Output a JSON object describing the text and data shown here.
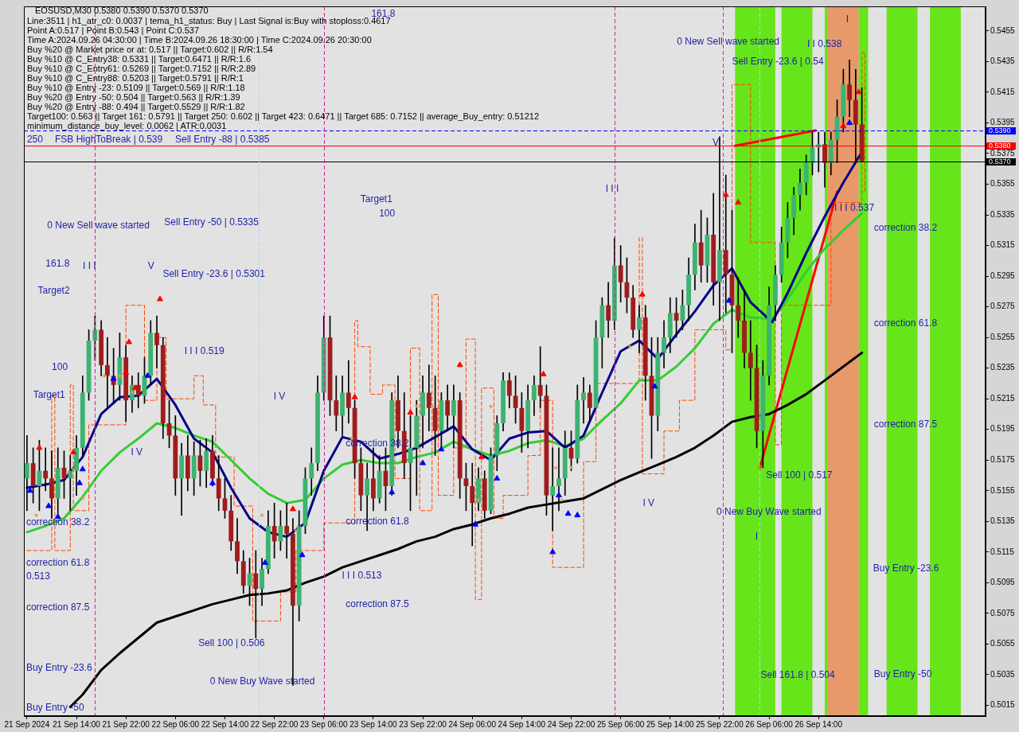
{
  "chart_data": {
    "type": "candlestick",
    "title": "EOSUSD,M30 0.5380 0.5390 0.5370 0.5370",
    "x": [
      "2024-09-21T06:00",
      "2024-09-21T07:00",
      "2024-09-21T08:00",
      "2024-09-21T09:00",
      "2024-09-21T10:00",
      "2024-09-21T11:00",
      "2024-09-21T12:00",
      "2024-09-21T13:00",
      "2024-09-21T14:00",
      "2024-09-21T15:00",
      "2024-09-21T16:00",
      "2024-09-21T17:00",
      "2024-09-21T18:00",
      "2024-09-21T19:00",
      "2024-09-21T20:00",
      "2024-09-21T21:00",
      "2024-09-21T22:00",
      "2024-09-21T23:00",
      "2024-09-22T00:00",
      "2024-09-22T01:00",
      "2024-09-22T02:00",
      "2024-09-22T03:00",
      "2024-09-22T04:00",
      "2024-09-22T05:00",
      "2024-09-22T06:00",
      "2024-09-22T07:00",
      "2024-09-22T08:00",
      "2024-09-22T09:00",
      "2024-09-22T10:00",
      "2024-09-22T11:00",
      "2024-09-22T12:00",
      "2024-09-22T13:00",
      "2024-09-22T14:00",
      "2024-09-22T15:00",
      "2024-09-22T16:00",
      "2024-09-22T17:00",
      "2024-09-22T18:00",
      "2024-09-22T19:00",
      "2024-09-22T20:00",
      "2024-09-22T21:00",
      "2024-09-22T22:00",
      "2024-09-22T23:00",
      "2024-09-23T00:00",
      "2024-09-23T01:00",
      "2024-09-23T02:00",
      "2024-09-23T03:00",
      "2024-09-23T04:00",
      "2024-09-23T05:00",
      "2024-09-23T06:00",
      "2024-09-23T07:00",
      "2024-09-23T08:00",
      "2024-09-23T09:00",
      "2024-09-23T10:00",
      "2024-09-23T11:00",
      "2024-09-23T12:00",
      "2024-09-23T13:00",
      "2024-09-23T14:00",
      "2024-09-23T15:00",
      "2024-09-23T16:00",
      "2024-09-23T17:00",
      "2024-09-23T18:00",
      "2024-09-23T19:00",
      "2024-09-23T20:00",
      "2024-09-23T21:00",
      "2024-09-23T22:00",
      "2024-09-23T23:00",
      "2024-09-24T00:00",
      "2024-09-24T01:00",
      "2024-09-24T02:00",
      "2024-09-24T03:00",
      "2024-09-24T04:00",
      "2024-09-24T05:00",
      "2024-09-24T06:00",
      "2024-09-24T07:00",
      "2024-09-24T08:00",
      "2024-09-24T09:00",
      "2024-09-24T10:00",
      "2024-09-24T11:00",
      "2024-09-24T12:00",
      "2024-09-24T13:00",
      "2024-09-24T14:00",
      "2024-09-24T15:00",
      "2024-09-24T16:00",
      "2024-09-24T17:00",
      "2024-09-24T18:00",
      "2024-09-24T19:00",
      "2024-09-24T20:00",
      "2024-09-24T21:00",
      "2024-09-24T22:00",
      "2024-09-24T23:00",
      "2024-09-25T00:00",
      "2024-09-25T01:00",
      "2024-09-25T02:00",
      "2024-09-25T03:00",
      "2024-09-25T04:00",
      "2024-09-25T05:00",
      "2024-09-25T06:00",
      "2024-09-25T07:00",
      "2024-09-25T08:00",
      "2024-09-25T09:00",
      "2024-09-25T10:00",
      "2024-09-25T11:00",
      "2024-09-25T12:00",
      "2024-09-25T13:00",
      "2024-09-25T14:00",
      "2024-09-25T15:00",
      "2024-09-25T16:00",
      "2024-09-25T17:00",
      "2024-09-25T18:00",
      "2024-09-25T19:00",
      "2024-09-25T20:00",
      "2024-09-25T21:00",
      "2024-09-25T22:00",
      "2024-09-25T23:00",
      "2024-09-26T00:00",
      "2024-09-26T01:00",
      "2024-09-26T02:00",
      "2024-09-26T03:00",
      "2024-09-26T04:00",
      "2024-09-26T05:00",
      "2024-09-26T06:00",
      "2024-09-26T07:00",
      "2024-09-26T08:00",
      "2024-09-26T09:00",
      "2024-09-26T10:00",
      "2024-09-26T11:00",
      "2024-09-26T12:00",
      "2024-09-26T13:00",
      "2024-09-26T14:00",
      "2024-09-26T15:00",
      "2024-09-26T16:00",
      "2024-09-26T17:00",
      "2024-09-26T18:00",
      "2024-09-26T19:00",
      "2024-09-26T20:00",
      "2024-09-26T21:00"
    ],
    "ohlc": [
      [
        0.5163,
        0.5191,
        0.5142,
        0.5173
      ],
      [
        0.5173,
        0.5183,
        0.5147,
        0.5158
      ],
      [
        0.5158,
        0.5188,
        0.5142,
        0.5168
      ],
      [
        0.5168,
        0.5183,
        0.5155,
        0.5163
      ],
      [
        0.5163,
        0.5181,
        0.5137,
        0.515
      ],
      [
        0.515,
        0.5183,
        0.514,
        0.517
      ],
      [
        0.517,
        0.5181,
        0.515,
        0.5163
      ],
      [
        0.5163,
        0.5178,
        0.5142,
        0.5168
      ],
      [
        0.5168,
        0.5191,
        0.5152,
        0.5183
      ],
      [
        0.5183,
        0.523,
        0.5178,
        0.5219
      ],
      [
        0.5219,
        0.526,
        0.5214,
        0.5253
      ],
      [
        0.5253,
        0.5269,
        0.524,
        0.526
      ],
      [
        0.526,
        0.5266,
        0.523,
        0.5237
      ],
      [
        0.5237,
        0.5255,
        0.5209,
        0.523
      ],
      [
        0.523,
        0.5248,
        0.5212,
        0.5224
      ],
      [
        0.5224,
        0.5258,
        0.5214,
        0.5242
      ],
      [
        0.5242,
        0.525,
        0.52,
        0.5214
      ],
      [
        0.5214,
        0.523,
        0.5206,
        0.5224
      ],
      [
        0.5224,
        0.5232,
        0.5209,
        0.5217
      ],
      [
        0.5217,
        0.5242,
        0.5212,
        0.523
      ],
      [
        0.523,
        0.5266,
        0.5224,
        0.5258
      ],
      [
        0.5258,
        0.5269,
        0.5235,
        0.525
      ],
      [
        0.525,
        0.5255,
        0.5189,
        0.5199
      ],
      [
        0.5199,
        0.5214,
        0.5183,
        0.5191
      ],
      [
        0.5191,
        0.5204,
        0.5152,
        0.5163
      ],
      [
        0.5163,
        0.5186,
        0.5139,
        0.5178
      ],
      [
        0.5178,
        0.5191,
        0.5155,
        0.5163
      ],
      [
        0.5163,
        0.5187,
        0.5152,
        0.5178
      ],
      [
        0.5178,
        0.5188,
        0.5158,
        0.5168
      ],
      [
        0.5168,
        0.5189,
        0.5157,
        0.5181
      ],
      [
        0.5181,
        0.5191,
        0.5158,
        0.5163
      ],
      [
        0.5163,
        0.5178,
        0.5142,
        0.515
      ],
      [
        0.515,
        0.5163,
        0.5137,
        0.5142
      ],
      [
        0.5142,
        0.5152,
        0.5116,
        0.5122
      ],
      [
        0.5122,
        0.5137,
        0.5101,
        0.5109
      ],
      [
        0.5109,
        0.5116,
        0.5088,
        0.5093
      ],
      [
        0.5093,
        0.5111,
        0.508,
        0.5101
      ],
      [
        0.5101,
        0.5116,
        0.5059,
        0.5091
      ],
      [
        0.5091,
        0.5111,
        0.508,
        0.5104
      ],
      [
        0.5104,
        0.5142,
        0.5101,
        0.5132
      ],
      [
        0.5132,
        0.5147,
        0.5111,
        0.5122
      ],
      [
        0.5122,
        0.5142,
        0.5116,
        0.5132
      ],
      [
        0.5132,
        0.5147,
        0.5111,
        0.5127
      ],
      [
        0.5127,
        0.5137,
        0.5028,
        0.508
      ],
      [
        0.508,
        0.5142,
        0.507,
        0.5132
      ],
      [
        0.5132,
        0.517,
        0.5127,
        0.5163
      ],
      [
        0.5163,
        0.5183,
        0.5152,
        0.5173
      ],
      [
        0.5173,
        0.523,
        0.5168,
        0.5219
      ],
      [
        0.5219,
        0.5269,
        0.5214,
        0.5255
      ],
      [
        0.5255,
        0.5269,
        0.5204,
        0.5214
      ],
      [
        0.5214,
        0.523,
        0.5194,
        0.5204
      ],
      [
        0.5204,
        0.523,
        0.5191,
        0.5219
      ],
      [
        0.5219,
        0.524,
        0.5199,
        0.5209
      ],
      [
        0.5209,
        0.5214,
        0.5163,
        0.5173
      ],
      [
        0.5173,
        0.5183,
        0.5142,
        0.5152
      ],
      [
        0.5152,
        0.5173,
        0.5129,
        0.5163
      ],
      [
        0.5163,
        0.5183,
        0.5142,
        0.515
      ],
      [
        0.515,
        0.5178,
        0.5147,
        0.5168
      ],
      [
        0.5168,
        0.5183,
        0.5142,
        0.5158
      ],
      [
        0.5158,
        0.5219,
        0.5152,
        0.5214
      ],
      [
        0.5214,
        0.523,
        0.5183,
        0.5194
      ],
      [
        0.5194,
        0.5219,
        0.5163,
        0.5173
      ],
      [
        0.5173,
        0.5204,
        0.5142,
        0.5183
      ],
      [
        0.5183,
        0.5214,
        0.5152,
        0.5204
      ],
      [
        0.5204,
        0.523,
        0.5183,
        0.5219
      ],
      [
        0.5219,
        0.5237,
        0.5194,
        0.5209
      ],
      [
        0.5209,
        0.523,
        0.5178,
        0.5194
      ],
      [
        0.5194,
        0.5219,
        0.5183,
        0.5214
      ],
      [
        0.5214,
        0.5224,
        0.5194,
        0.5204
      ],
      [
        0.5204,
        0.5224,
        0.5183,
        0.5214
      ],
      [
        0.5214,
        0.5219,
        0.515,
        0.5163
      ],
      [
        0.5163,
        0.5173,
        0.5142,
        0.5158
      ],
      [
        0.5158,
        0.5173,
        0.5119,
        0.5147
      ],
      [
        0.5147,
        0.517,
        0.5142,
        0.5163
      ],
      [
        0.5163,
        0.5168,
        0.5137,
        0.5142
      ],
      [
        0.5142,
        0.5183,
        0.514,
        0.5178
      ],
      [
        0.5178,
        0.5204,
        0.5168,
        0.5199
      ],
      [
        0.5199,
        0.5232,
        0.5194,
        0.5227
      ],
      [
        0.5227,
        0.5232,
        0.5209,
        0.5217
      ],
      [
        0.5217,
        0.523,
        0.5199,
        0.5209
      ],
      [
        0.5209,
        0.5219,
        0.518,
        0.5194
      ],
      [
        0.5194,
        0.5224,
        0.5183,
        0.5214
      ],
      [
        0.5214,
        0.523,
        0.5204,
        0.5224
      ],
      [
        0.5224,
        0.5249,
        0.5209,
        0.5217
      ],
      [
        0.5217,
        0.5224,
        0.5139,
        0.5152
      ],
      [
        0.5152,
        0.5183,
        0.5129,
        0.5158
      ],
      [
        0.5158,
        0.5183,
        0.5142,
        0.5163
      ],
      [
        0.5163,
        0.5194,
        0.5152,
        0.5183
      ],
      [
        0.5183,
        0.5194,
        0.5168,
        0.5176
      ],
      [
        0.5176,
        0.5224,
        0.5173,
        0.5214
      ],
      [
        0.5214,
        0.5229,
        0.5199,
        0.5219
      ],
      [
        0.5219,
        0.5224,
        0.5201,
        0.5209
      ],
      [
        0.5209,
        0.5266,
        0.5209,
        0.5255
      ],
      [
        0.5255,
        0.5281,
        0.5235,
        0.5276
      ],
      [
        0.5276,
        0.5291,
        0.5255,
        0.5266
      ],
      [
        0.5266,
        0.532,
        0.526,
        0.5302
      ],
      [
        0.5302,
        0.5315,
        0.5278,
        0.5291
      ],
      [
        0.5291,
        0.5307,
        0.5271,
        0.5281
      ],
      [
        0.5281,
        0.5289,
        0.5255,
        0.526
      ],
      [
        0.526,
        0.5276,
        0.5245,
        0.5268
      ],
      [
        0.5268,
        0.5276,
        0.5214,
        0.523
      ],
      [
        0.523,
        0.5255,
        0.5176,
        0.5204
      ],
      [
        0.5204,
        0.5255,
        0.5194,
        0.5245
      ],
      [
        0.5245,
        0.5266,
        0.5235,
        0.5255
      ],
      [
        0.5255,
        0.5281,
        0.5245,
        0.5271
      ],
      [
        0.5271,
        0.5281,
        0.5255,
        0.5266
      ],
      [
        0.5266,
        0.5286,
        0.526,
        0.5276
      ],
      [
        0.5276,
        0.5307,
        0.5266,
        0.5296
      ],
      [
        0.5296,
        0.5329,
        0.5286,
        0.5317
      ],
      [
        0.5317,
        0.5338,
        0.5291,
        0.5302
      ],
      [
        0.5302,
        0.5333,
        0.5291,
        0.5322
      ],
      [
        0.5322,
        0.5349,
        0.5276,
        0.5291
      ],
      [
        0.5291,
        0.5386,
        0.5266,
        0.5312
      ],
      [
        0.5312,
        0.5361,
        0.5271,
        0.5296
      ],
      [
        0.5296,
        0.5338,
        0.5245,
        0.5276
      ],
      [
        0.5276,
        0.5294,
        0.5255,
        0.5266
      ],
      [
        0.5266,
        0.5286,
        0.5235,
        0.5245
      ],
      [
        0.5245,
        0.5266,
        0.5214,
        0.5235
      ],
      [
        0.5235,
        0.525,
        0.5183,
        0.5194
      ],
      [
        0.5194,
        0.524,
        0.517,
        0.523
      ],
      [
        0.523,
        0.5288,
        0.5224,
        0.5276
      ],
      [
        0.5276,
        0.5302,
        0.5266,
        0.5296
      ],
      [
        0.5296,
        0.5327,
        0.5291,
        0.5317
      ],
      [
        0.5317,
        0.5343,
        0.5307,
        0.5333
      ],
      [
        0.5333,
        0.5353,
        0.5322,
        0.5348
      ],
      [
        0.5348,
        0.5365,
        0.5338,
        0.5356
      ],
      [
        0.5356,
        0.5374,
        0.5348,
        0.5369
      ],
      [
        0.5369,
        0.5389,
        0.5361,
        0.5379
      ],
      [
        0.5379,
        0.5389,
        0.5363,
        0.5381
      ],
      [
        0.5381,
        0.5389,
        0.5353,
        0.5369
      ],
      [
        0.5369,
        0.5389,
        0.5361,
        0.5384
      ],
      [
        0.5384,
        0.541,
        0.5369,
        0.5399
      ],
      [
        0.5399,
        0.543,
        0.5389,
        0.542
      ],
      [
        0.542,
        0.5436,
        0.5399,
        0.541
      ],
      [
        0.541,
        0.543,
        0.5369,
        0.5394
      ],
      [
        0.5394,
        0.5418,
        0.537,
        0.537
      ]
    ],
    "series": [
      {
        "type": "line",
        "color": "#00008b",
        "x": [
          "2024-09-21T06:00",
          "2024-09-21T09:00",
          "2024-09-21T12:00",
          "2024-09-21T15:00",
          "2024-09-21T18:00",
          "2024-09-21T21:00",
          "2024-09-22T00:00",
          "2024-09-22T03:00",
          "2024-09-22T06:00",
          "2024-09-22T09:00",
          "2024-09-22T12:00",
          "2024-09-22T15:00",
          "2024-09-22T18:00",
          "2024-09-22T21:00",
          "2024-09-23T00:00",
          "2024-09-23T03:00",
          "2024-09-23T06:00",
          "2024-09-23T09:00",
          "2024-09-23T12:00",
          "2024-09-23T15:00",
          "2024-09-23T18:00",
          "2024-09-23T21:00",
          "2024-09-24T00:00",
          "2024-09-24T03:00",
          "2024-09-24T06:00",
          "2024-09-24T09:00",
          "2024-09-24T12:00",
          "2024-09-24T15:00",
          "2024-09-24T18:00",
          "2024-09-24T21:00",
          "2024-09-25T00:00",
          "2024-09-25T03:00",
          "2024-09-25T06:00",
          "2024-09-25T09:00",
          "2024-09-25T12:00",
          "2024-09-25T15:00",
          "2024-09-25T18:00",
          "2024-09-25T21:00",
          "2024-09-26T00:00",
          "2024-09-26T03:00",
          "2024-09-26T06:30",
          "2024-09-26T09:00",
          "2024-09-26T12:00",
          "2024-09-26T15:00",
          "2024-09-26T18:00",
          "2024-09-26T21:00"
        ],
        "values": [
          0.5157,
          0.5159,
          0.5162,
          0.5177,
          0.5205,
          0.5216,
          0.5217,
          0.5228,
          0.5211,
          0.5189,
          0.518,
          0.5157,
          0.5137,
          0.5128,
          0.5125,
          0.5134,
          0.5168,
          0.519,
          0.5187,
          0.5176,
          0.5179,
          0.5183,
          0.519,
          0.5197,
          0.5182,
          0.5175,
          0.5189,
          0.5193,
          0.5194,
          0.5183,
          0.5191,
          0.5219,
          0.5246,
          0.5253,
          0.5241,
          0.5257,
          0.5272,
          0.5289,
          0.53,
          0.5278,
          0.5265,
          0.5284,
          0.531,
          0.5334,
          0.5356,
          0.5376
        ]
      },
      {
        "type": "line",
        "color": "#32cd32",
        "x": [
          "2024-09-21T06:00",
          "2024-09-21T09:00",
          "2024-09-21T12:00",
          "2024-09-21T15:00",
          "2024-09-21T18:00",
          "2024-09-21T21:00",
          "2024-09-22T00:00",
          "2024-09-22T03:00",
          "2024-09-22T06:00",
          "2024-09-22T09:00",
          "2024-09-22T12:00",
          "2024-09-22T15:00",
          "2024-09-22T18:00",
          "2024-09-22T21:00",
          "2024-09-23T00:00",
          "2024-09-23T03:00",
          "2024-09-23T06:00",
          "2024-09-23T09:00",
          "2024-09-23T12:00",
          "2024-09-23T15:00",
          "2024-09-23T18:00",
          "2024-09-23T21:00",
          "2024-09-24T00:00",
          "2024-09-24T03:00",
          "2024-09-24T06:00",
          "2024-09-24T09:00",
          "2024-09-24T12:00",
          "2024-09-24T15:00",
          "2024-09-24T18:00",
          "2024-09-24T21:00",
          "2024-09-25T00:00",
          "2024-09-25T03:00",
          "2024-09-25T06:00",
          "2024-09-25T09:00",
          "2024-09-25T12:00",
          "2024-09-25T15:00",
          "2024-09-25T18:00",
          "2024-09-25T21:00",
          "2024-09-26T00:00",
          "2024-09-26T03:00",
          "2024-09-26T06:30",
          "2024-09-26T09:00",
          "2024-09-26T12:00",
          "2024-09-26T15:00",
          "2024-09-26T18:00",
          "2024-09-26T21:00"
        ],
        "values": [
          0.5128,
          0.5132,
          0.5137,
          0.5151,
          0.5168,
          0.518,
          0.5189,
          0.5199,
          0.5196,
          0.5191,
          0.5187,
          0.5175,
          0.5163,
          0.5153,
          0.5147,
          0.5149,
          0.5163,
          0.5172,
          0.5175,
          0.5173,
          0.5173,
          0.5177,
          0.518,
          0.5187,
          0.5182,
          0.5178,
          0.5181,
          0.5186,
          0.5188,
          0.5184,
          0.5189,
          0.5201,
          0.5212,
          0.5227,
          0.5227,
          0.5236,
          0.5248,
          0.5264,
          0.5273,
          0.5268,
          0.5267,
          0.528,
          0.5298,
          0.5313,
          0.5325,
          0.5336
        ]
      },
      {
        "type": "line",
        "color": "#000000",
        "x": [
          "2024-09-21T13:00",
          "2024-09-21T15:00",
          "2024-09-21T18:00",
          "2024-09-21T21:00",
          "2024-09-22T00:00",
          "2024-09-22T03:00",
          "2024-09-22T06:00",
          "2024-09-22T09:00",
          "2024-09-22T12:00",
          "2024-09-22T15:00",
          "2024-09-22T18:00",
          "2024-09-22T21:00",
          "2024-09-23T00:00",
          "2024-09-23T03:00",
          "2024-09-23T06:00",
          "2024-09-23T09:00",
          "2024-09-23T12:00",
          "2024-09-23T15:00",
          "2024-09-23T18:00",
          "2024-09-23T21:00",
          "2024-09-24T00:00",
          "2024-09-24T03:00",
          "2024-09-24T06:00",
          "2024-09-24T09:00",
          "2024-09-24T12:00",
          "2024-09-24T15:00",
          "2024-09-24T18:00",
          "2024-09-24T21:00",
          "2024-09-25T00:00",
          "2024-09-25T03:00",
          "2024-09-25T06:00",
          "2024-09-25T09:00",
          "2024-09-25T12:00",
          "2024-09-25T15:00",
          "2024-09-25T18:00",
          "2024-09-25T21:00",
          "2024-09-26T00:00",
          "2024-09-26T03:00",
          "2024-09-26T06:00",
          "2024-09-26T09:00",
          "2024-09-26T12:00",
          "2024-09-26T15:00",
          "2024-09-26T18:00",
          "2024-09-26T21:00"
        ],
        "values": [
          0.5014,
          0.5022,
          0.5038,
          0.5049,
          0.5059,
          0.5069,
          0.5073,
          0.5077,
          0.5081,
          0.5084,
          0.5087,
          0.5088,
          0.509,
          0.5095,
          0.5099,
          0.5105,
          0.5109,
          0.5113,
          0.5117,
          0.5122,
          0.5125,
          0.513,
          0.5133,
          0.5137,
          0.514,
          0.5144,
          0.5146,
          0.5148,
          0.515,
          0.5156,
          0.5162,
          0.5167,
          0.5172,
          0.5177,
          0.5183,
          0.5191,
          0.52,
          0.5203,
          0.5205,
          0.5211,
          0.5218,
          0.5227,
          0.5236,
          0.5245
        ]
      },
      {
        "type": "step",
        "color": "#ff4500",
        "line_style": "dashed",
        "x": [
          "2024-09-21T06:00",
          "2024-09-21T10:00",
          "2024-09-21T10:30",
          "2024-09-21T13:00",
          "2024-09-21T13:30",
          "2024-09-21T16:00",
          "2024-09-21T22:00",
          "2024-09-22T01:00",
          "2024-09-22T03:00",
          "2024-09-22T04:30",
          "2024-09-22T09:00",
          "2024-09-22T10:30",
          "2024-09-22T12:30",
          "2024-09-22T15:30",
          "2024-09-22T18:30",
          "2024-09-22T23:00",
          "2024-09-23T01:30",
          "2024-09-23T06:00",
          "2024-09-23T11:00",
          "2024-09-23T11:30",
          "2024-09-23T13:30",
          "2024-09-23T15:30",
          "2024-09-23T17:30",
          "2024-09-23T20:00",
          "2024-09-23T21:30",
          "2024-09-23T23:30",
          "2024-09-24T00:30",
          "2024-09-24T03:00",
          "2024-09-24T05:00",
          "2024-09-24T06:30",
          "2024-09-24T07:30",
          "2024-09-24T09:30",
          "2024-09-24T11:00",
          "2024-09-24T15:00",
          "2024-09-24T17:00",
          "2024-09-24T19:00",
          "2024-09-25T00:00",
          "2024-09-25T02:00",
          "2024-09-25T09:00",
          "2024-09-25T09:30",
          "2024-09-25T13:00",
          "2024-09-25T15:30",
          "2024-09-25T18:00",
          "2024-09-25T23:00",
          "2024-09-26T00:00",
          "2024-09-26T03:00",
          "2024-09-26T07:00",
          "2024-09-26T08:00",
          "2024-09-26T16:00",
          "2024-09-26T21:00",
          "2024-09-26T21:30"
        ],
        "values": [
          0.5116,
          0.5217,
          0.5116,
          0.5224,
          0.5142,
          0.5198,
          0.5276,
          0.5214,
          0.5255,
          0.5215,
          0.523,
          0.5211,
          0.5177,
          0.5145,
          0.507,
          0.5089,
          0.5116,
          0.5134,
          0.5266,
          0.5249,
          0.5218,
          0.5224,
          0.5163,
          0.5248,
          0.5142,
          0.5283,
          0.5152,
          0.5183,
          0.5254,
          0.5084,
          0.5222,
          0.5137,
          0.5152,
          0.5178,
          0.5214,
          0.5105,
          0.5174,
          0.5225,
          0.532,
          0.5166,
          0.5194,
          0.5214,
          0.526,
          0.5247,
          0.542,
          0.5317,
          0.5185,
          0.5276,
          0.5343,
          0.5441,
          0.535
        ]
      },
      {
        "type": "line",
        "color": "#ff0000",
        "x": [
          "2024-09-26T00:30",
          "2024-09-26T13:30"
        ],
        "values": [
          0.538,
          0.539
        ]
      },
      {
        "type": "line",
        "color": "#ff0000",
        "x": [
          "2024-09-26T04:30",
          "2024-09-26T17:00"
        ],
        "values": [
          0.517,
          0.535
        ]
      },
      {
        "type": "scatter",
        "color": "#ff0000",
        "marker": "triangle",
        "x": [
          "2024-09-21T08:00",
          "2024-09-21T13:30",
          "2024-09-21T22:00",
          "2024-09-21T22:30",
          "2024-09-21T23:30",
          "2024-09-22T03:30",
          "2024-09-23T01:00",
          "2024-09-23T11:00",
          "2024-09-23T20:00",
          "2024-09-24T04:00",
          "2024-09-24T07:30",
          "2024-09-24T17:30",
          "2024-09-25T09:30",
          "2024-09-25T23:00",
          "2024-09-26T01:00",
          "2024-09-26T18:00",
          "2024-09-26T20:30"
        ],
        "values": [
          0.5183,
          0.518,
          0.5232,
          0.5252,
          0.5222,
          0.528,
          0.5143,
          0.5216,
          0.5206,
          0.5237,
          0.5177,
          0.5231,
          0.5283,
          0.5348,
          0.5343,
          0.5393,
          0.5415
        ]
      },
      {
        "type": "scatter",
        "color": "#0000ff",
        "marker": "triangle",
        "x": [
          "2024-09-21T06:30",
          "2024-09-21T09:30",
          "2024-09-21T11:00",
          "2024-09-21T14:30",
          "2024-09-21T15:00",
          "2024-09-21T20:00",
          "2024-09-22T01:30",
          "2024-09-22T12:00",
          "2024-09-22T20:30",
          "2024-09-23T02:30",
          "2024-09-23T17:00",
          "2024-09-23T22:00",
          "2024-09-24T01:00",
          "2024-09-24T06:30",
          "2024-09-24T10:00",
          "2024-09-24T19:00",
          "2024-09-24T20:00",
          "2024-09-24T21:30",
          "2024-09-24T23:00",
          "2024-09-25T11:30",
          "2024-09-25T23:30",
          "2024-09-26T19:00"
        ],
        "values": [
          0.5155,
          0.5145,
          0.5138,
          0.516,
          0.5169,
          0.5228,
          0.523,
          0.516,
          0.5108,
          0.5113,
          0.5154,
          0.5173,
          0.5182,
          0.5133,
          0.5163,
          0.5115,
          0.5152,
          0.514,
          0.5139,
          0.5223,
          0.5279,
          0.5395
        ]
      },
      {
        "type": "scatter",
        "color": "#e09a50",
        "marker": "star",
        "x": [
          "2024-09-21T07:30",
          "2024-09-21T13:30",
          "2024-09-21T15:00",
          "2024-09-21T18:30",
          "2024-09-21T21:00",
          "2024-09-21T23:00",
          "2024-09-22T20:00",
          "2024-09-23T01:30",
          "2024-09-23T10:30",
          "2024-09-23T21:00",
          "2024-09-23T23:30",
          "2024-09-24T07:00",
          "2024-09-24T09:00",
          "2024-09-24T19:30",
          "2024-09-24T20:30",
          "2024-09-24T22:00",
          "2024-09-25T07:30"
        ],
        "values": [
          0.5139,
          0.5169,
          0.515,
          0.523,
          0.523,
          0.5219,
          0.5139,
          0.5129,
          0.5189,
          0.521,
          0.521,
          0.5149,
          0.521,
          0.517,
          0.5149,
          0.517,
          0.5249
        ]
      }
    ],
    "xlim": [
      "2024-09-21T05:30",
      "2024-09-27T17:00"
    ],
    "ylim": [
      0.5008,
      0.5471
    ],
    "xticks": [
      {
        "value": "2024-09-21T06:00",
        "label": "21 Sep 2024"
      },
      {
        "value": "2024-09-21T14:00",
        "label": "21 Sep 14:00"
      },
      {
        "value": "2024-09-21T22:00",
        "label": "21 Sep 22:00"
      },
      {
        "value": "2024-09-22T06:00",
        "label": "22 Sep 06:00"
      },
      {
        "value": "2024-09-22T14:00",
        "label": "22 Sep 14:00"
      },
      {
        "value": "2024-09-22T22:00",
        "label": "22 Sep 22:00"
      },
      {
        "value": "2024-09-23T06:00",
        "label": "23 Sep 06:00"
      },
      {
        "value": "2024-09-23T14:00",
        "label": "23 Sep 14:00"
      },
      {
        "value": "2024-09-23T22:00",
        "label": "23 Sep 22:00"
      },
      {
        "value": "2024-09-24T06:00",
        "label": "24 Sep 06:00"
      },
      {
        "value": "2024-09-24T14:00",
        "label": "24 Sep 14:00"
      },
      {
        "value": "2024-09-24T22:00",
        "label": "24 Sep 22:00"
      },
      {
        "value": "2024-09-25T06:00",
        "label": "25 Sep 06:00"
      },
      {
        "value": "2024-09-25T14:00",
        "label": "25 Sep 14:00"
      },
      {
        "value": "2024-09-25T22:00",
        "label": "25 Sep 22:00"
      },
      {
        "value": "2024-09-26T06:00",
        "label": "26 Sep 06:00"
      },
      {
        "value": "2024-09-26T14:00",
        "label": "26 Sep 14:00"
      }
    ],
    "yticks": [
      0.5455,
      0.5435,
      0.5415,
      0.5395,
      0.5375,
      0.5355,
      0.5335,
      0.5315,
      0.5295,
      0.5275,
      0.5255,
      0.5235,
      0.5215,
      0.5195,
      0.5175,
      0.5155,
      0.5135,
      0.5115,
      0.5095,
      0.5075,
      0.5055,
      0.5035,
      0.5015
    ],
    "bands": [
      {
        "axis": "x",
        "from": "2024-09-26T00:30",
        "to": "2024-09-26T07:00",
        "color": "#66e61a"
      },
      {
        "axis": "x",
        "from": "2024-09-26T08:00",
        "to": "2024-09-26T13:00",
        "color": "#66e61a"
      },
      {
        "axis": "x",
        "from": "2024-09-26T15:00",
        "to": "2024-09-26T15:30",
        "color": "#66e61a"
      },
      {
        "axis": "x",
        "from": "2024-09-26T15:30",
        "to": "2024-09-26T20:30",
        "color": "#e8996a"
      },
      {
        "axis": "x",
        "from": "2024-09-26T20:30",
        "to": "2024-09-26T22:00",
        "color": "#66e61a"
      },
      {
        "axis": "x",
        "from": "2024-09-27T01:00",
        "to": "2024-09-27T06:00",
        "color": "#66e61a"
      },
      {
        "axis": "x",
        "from": "2024-09-27T08:00",
        "to": "2024-09-27T13:00",
        "color": "#66e61a"
      }
    ],
    "ref_lines": [
      {
        "axis": "y",
        "value": 0.539,
        "label": "0.5390",
        "color": "#0000ff",
        "line_style": "dashed"
      },
      {
        "axis": "y",
        "value": 0.538,
        "label": "0.5380",
        "color": "#ff0000"
      },
      {
        "axis": "y",
        "value": 0.537,
        "label": "0.5370",
        "color": "#000000"
      },
      {
        "axis": "x",
        "value": "2024-09-21T17:00",
        "color": "#d0259a",
        "line_style": "dashed"
      },
      {
        "axis": "x",
        "value": "2024-09-22T19:30",
        "color": "#9fdfef",
        "line_style": "dashed"
      },
      {
        "axis": "x",
        "value": "2024-09-23T06:00",
        "color": "#d0259a",
        "line_style": "dashed"
      },
      {
        "axis": "x",
        "value": "2024-09-25T05:00",
        "color": "#d0259a",
        "line_style": "dashed"
      },
      {
        "axis": "x",
        "value": "2024-09-25T22:30",
        "color": "#d0259a",
        "line_style": "dashed"
      },
      {
        "axis": "x",
        "value": "2024-09-26T04:30",
        "color": "#9fdfef",
        "line_style": "dashed"
      }
    ],
    "annotations": [
      "Line:3511 | h1_atr_c0: 0.0037 | tema_h1_status: Buy | Last Signal is:Buy with stoploss:0.4617",
      "Point A:0.517 | Point B:0.543 | Point C:0.537",
      "Time A:2024.09.26 04:30:00 | Time B:2024.09.26 18:30:00 | Time C:2024.09.26 20:30:00",
      "Buy %20 @ Market price or at: 0.517 || Target:0.602 || R/R:1.54",
      "Buy %10 @ C_Entry38: 0.5331 || Target:0.6471 || R/R:1.6",
      "Buy %10 @ C_Entry61: 0.5269 || Target:0.7152 || R/R:2.89",
      "Buy %10 @ C_Entry88: 0.5203 || Target:0.5791 || R/R:1",
      "Buy %10 @ Entry -23: 0.5109 || Target:0.569 || R/R:1.18",
      "Buy %20 @ Entry -50: 0.504 || Target:0.563 || R/R:1.39",
      "Buy %20 @ Entry -88: 0.494 || Target:0.5529 || R/R:1.82",
      "Target100: 0.563 || Target 161: 0.5791 || Target 250: 0.602 || Target 423: 0.6471 || Target 685: 0.7152 || average_Buy_entry: 0.51212",
      "minimum_distance_buy_level: 0.0062 | ATR:0.0031",
      "161.8",
      "250",
      "FSB HighToBreak | 0.539",
      "Sell Entry -88 | 0.5385",
      "0 New Sell wave started",
      "Sell Entry -50 | 0.5335",
      "Target1",
      "100",
      "161.8",
      "I I I",
      "V",
      "Sell Entry -23.6 | 0.5301",
      "Target2",
      "I I I 0.519",
      "100",
      "Target1",
      "I V",
      "I V",
      "correction 38.2",
      "correction 38.2",
      "correction 61.8",
      "0.513",
      "correction 87.5",
      "Buy Entry -23.6",
      "Buy Entry -50",
      "Sell 100 | 0.506",
      "0 New Buy Wave started",
      "correction 61.8",
      "I I I 0.513",
      "correction 87.5",
      "I I I",
      "V",
      "I V",
      "0 New Sell wave started",
      "Sell Entry -23.6 | 0.54",
      "I I 0.538",
      "I",
      "I I I 0.537",
      "correction 38.2",
      "correction 61.8",
      "correction 87.5",
      "Sell 100 | 0.517",
      "0 New Buy Wave started",
      "I",
      "Buy Entry -23.6",
      "Sell 161.8 | 0.504",
      "Buy Entry -50"
    ]
  }
}
